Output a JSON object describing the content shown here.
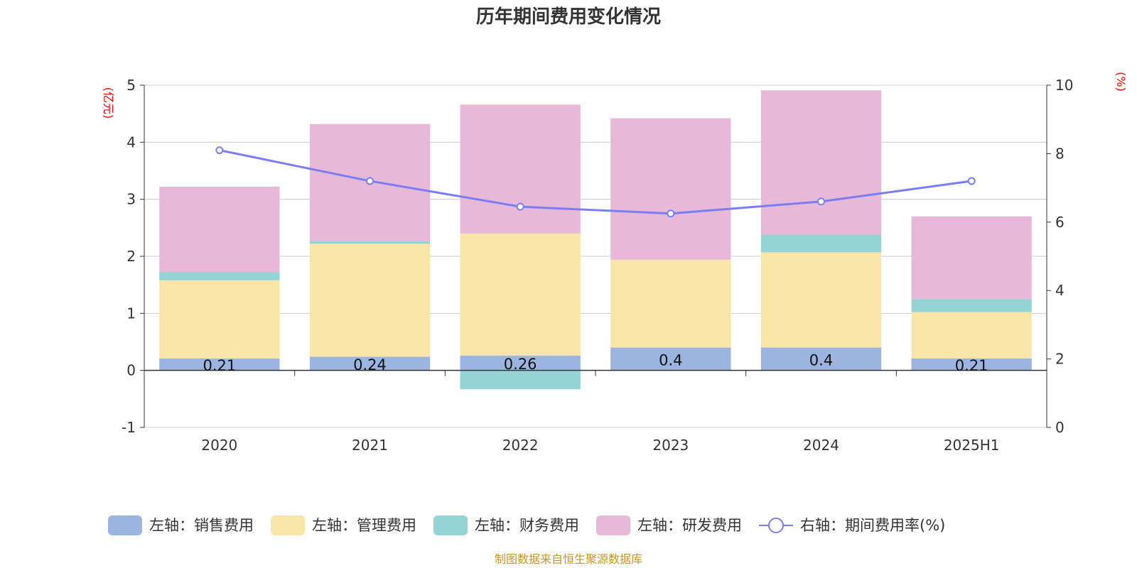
{
  "chart_data": {
    "type": "bar",
    "title": "历年期间费用变化情况",
    "left_axis_unit": "(亿元)",
    "right_axis_unit": "(%)",
    "categories": [
      "2020",
      "2021",
      "2022",
      "2023",
      "2024",
      "2025H1"
    ],
    "ylim_left": [
      -1,
      5
    ],
    "yticks_left": [
      "-1",
      "0",
      "1",
      "2",
      "3",
      "4",
      "5"
    ],
    "ylim_right": [
      0,
      10
    ],
    "yticks_right": [
      "0",
      "2",
      "4",
      "6",
      "8",
      "10"
    ],
    "grid": true,
    "legend_position": "bottom",
    "series": [
      {
        "name": "左轴：销售费用",
        "type": "bar",
        "axis": "left",
        "color": "#9cb4e0",
        "values": [
          0.21,
          0.24,
          0.26,
          0.4,
          0.4,
          0.21
        ],
        "labels": [
          "0.21",
          "0.24",
          "0.26",
          "0.4",
          "0.4",
          "0.21"
        ]
      },
      {
        "name": "左轴：管理费用",
        "type": "bar",
        "axis": "left",
        "color": "#f8e6a8",
        "values": [
          1.37,
          1.98,
          2.14,
          1.54,
          1.67,
          0.81
        ]
      },
      {
        "name": "左轴：财务费用",
        "type": "bar",
        "axis": "left",
        "color": "#94d4d4",
        "values": [
          0.14,
          0.05,
          -0.33,
          0.0,
          0.31,
          0.23
        ]
      },
      {
        "name": "左轴：研发费用",
        "type": "bar",
        "axis": "left",
        "color": "#e8b8d8",
        "values": [
          1.5,
          2.05,
          2.26,
          2.48,
          2.53,
          1.45
        ]
      },
      {
        "name": "右轴：期间费用率(%)",
        "type": "line",
        "axis": "right",
        "color": "#7b7ef0",
        "values": [
          8.1,
          7.2,
          6.45,
          6.25,
          6.6,
          7.2
        ]
      }
    ]
  },
  "source": "制图数据来自恒生聚源数据库"
}
